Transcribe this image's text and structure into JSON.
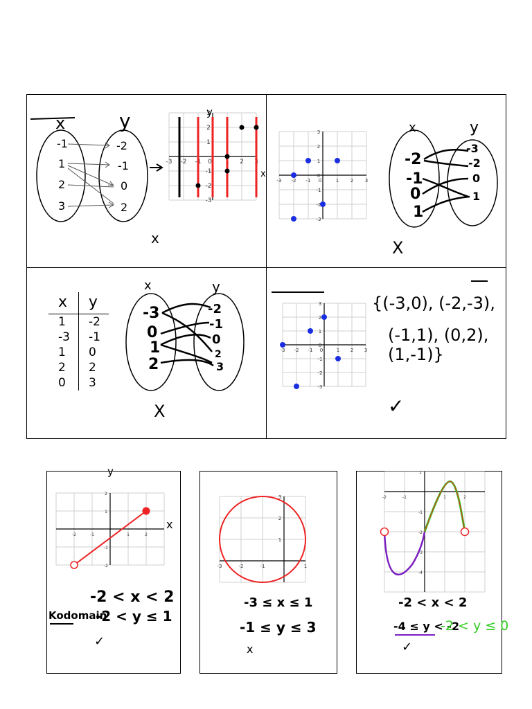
{
  "panel1": {
    "dom_label": "x",
    "cod_label": "y",
    "domain": [
      "-1",
      "1",
      "2",
      "3"
    ],
    "codomain": [
      "-2",
      "-1",
      "0",
      "2"
    ],
    "graph_axis_y": "y",
    "graph_axis_x": "x",
    "ticks_x": [
      "-3",
      "-2",
      "-1",
      "0",
      "1",
      "2",
      "3"
    ],
    "ticks_y": [
      "3",
      "2",
      "1",
      "-1",
      "-2",
      "-3"
    ],
    "mark": "x"
  },
  "panel2": {
    "dom_label": "x",
    "cod_label": "y",
    "domain": [
      "-2",
      "-1",
      "0",
      "1"
    ],
    "codomain": [
      "-3",
      "-2",
      "0",
      "1"
    ],
    "ticks_x": [
      "-3",
      "-2",
      "-1",
      "0",
      "1",
      "2",
      "3"
    ],
    "ticks_y": [
      "3",
      "2",
      "1",
      "0",
      "-1",
      "-2",
      "-3"
    ],
    "mark": "X"
  },
  "panel3": {
    "table_headers": [
      "x",
      "y"
    ],
    "table_rows": [
      [
        "1",
        "-2"
      ],
      [
        "-3",
        "-1"
      ],
      [
        "1",
        "0"
      ],
      [
        "2",
        "2"
      ],
      [
        "0",
        "3"
      ]
    ],
    "dom_label": "x",
    "cod_label": "y",
    "domain": [
      "-3",
      "0",
      "1",
      "2"
    ],
    "codomain": [
      "-2",
      "-1",
      "0",
      "2",
      "3"
    ],
    "mark": "X"
  },
  "panel4": {
    "ticks_x": [
      "-3",
      "-2",
      "-1",
      "0",
      "1",
      "2",
      "3"
    ],
    "ticks_y": [
      "3",
      "2",
      "1",
      "0",
      "-1",
      "-2",
      "-3"
    ],
    "set_line1": "{(-3,0), (-2,-3),",
    "set_line2": "(-1,1), (0,2), (1,-1)}",
    "mark": "✓"
  },
  "graph5": {
    "axis_y": "y",
    "axis_x": "x",
    "ticks_x": [
      "-2",
      "-1",
      "1",
      "2"
    ],
    "ticks_y": [
      "2",
      "1",
      "-1",
      "-2"
    ],
    "domain": "-2 < x < 2",
    "kodomain_label": "Kodomain",
    "kodomain": "-2 < y ≤ 1",
    "mark": "✓"
  },
  "graph6": {
    "ticks_x": [
      "-3",
      "-2",
      "-1",
      "1"
    ],
    "ticks_y": [
      "3",
      "2",
      "1"
    ],
    "domain": "-3 ≤ x ≤ 1",
    "range": "-1 ≤ y ≤ 3",
    "mark": "x"
  },
  "graph7": {
    "ticks_x": [
      "-2",
      "-1",
      "1",
      "2"
    ],
    "ticks_y": [
      "1",
      "-1",
      "-2",
      "-3",
      "-4"
    ],
    "domain": "-2 < x < 2",
    "range_purple": "-4 ≤ y < -2",
    "range_green": "-2 < y ≤ 0",
    "mark": "✓"
  },
  "colors": {
    "red": "#ee2222",
    "blue": "#1a2ee0",
    "purple": "#7a1fc0",
    "green": "#33cc22"
  }
}
